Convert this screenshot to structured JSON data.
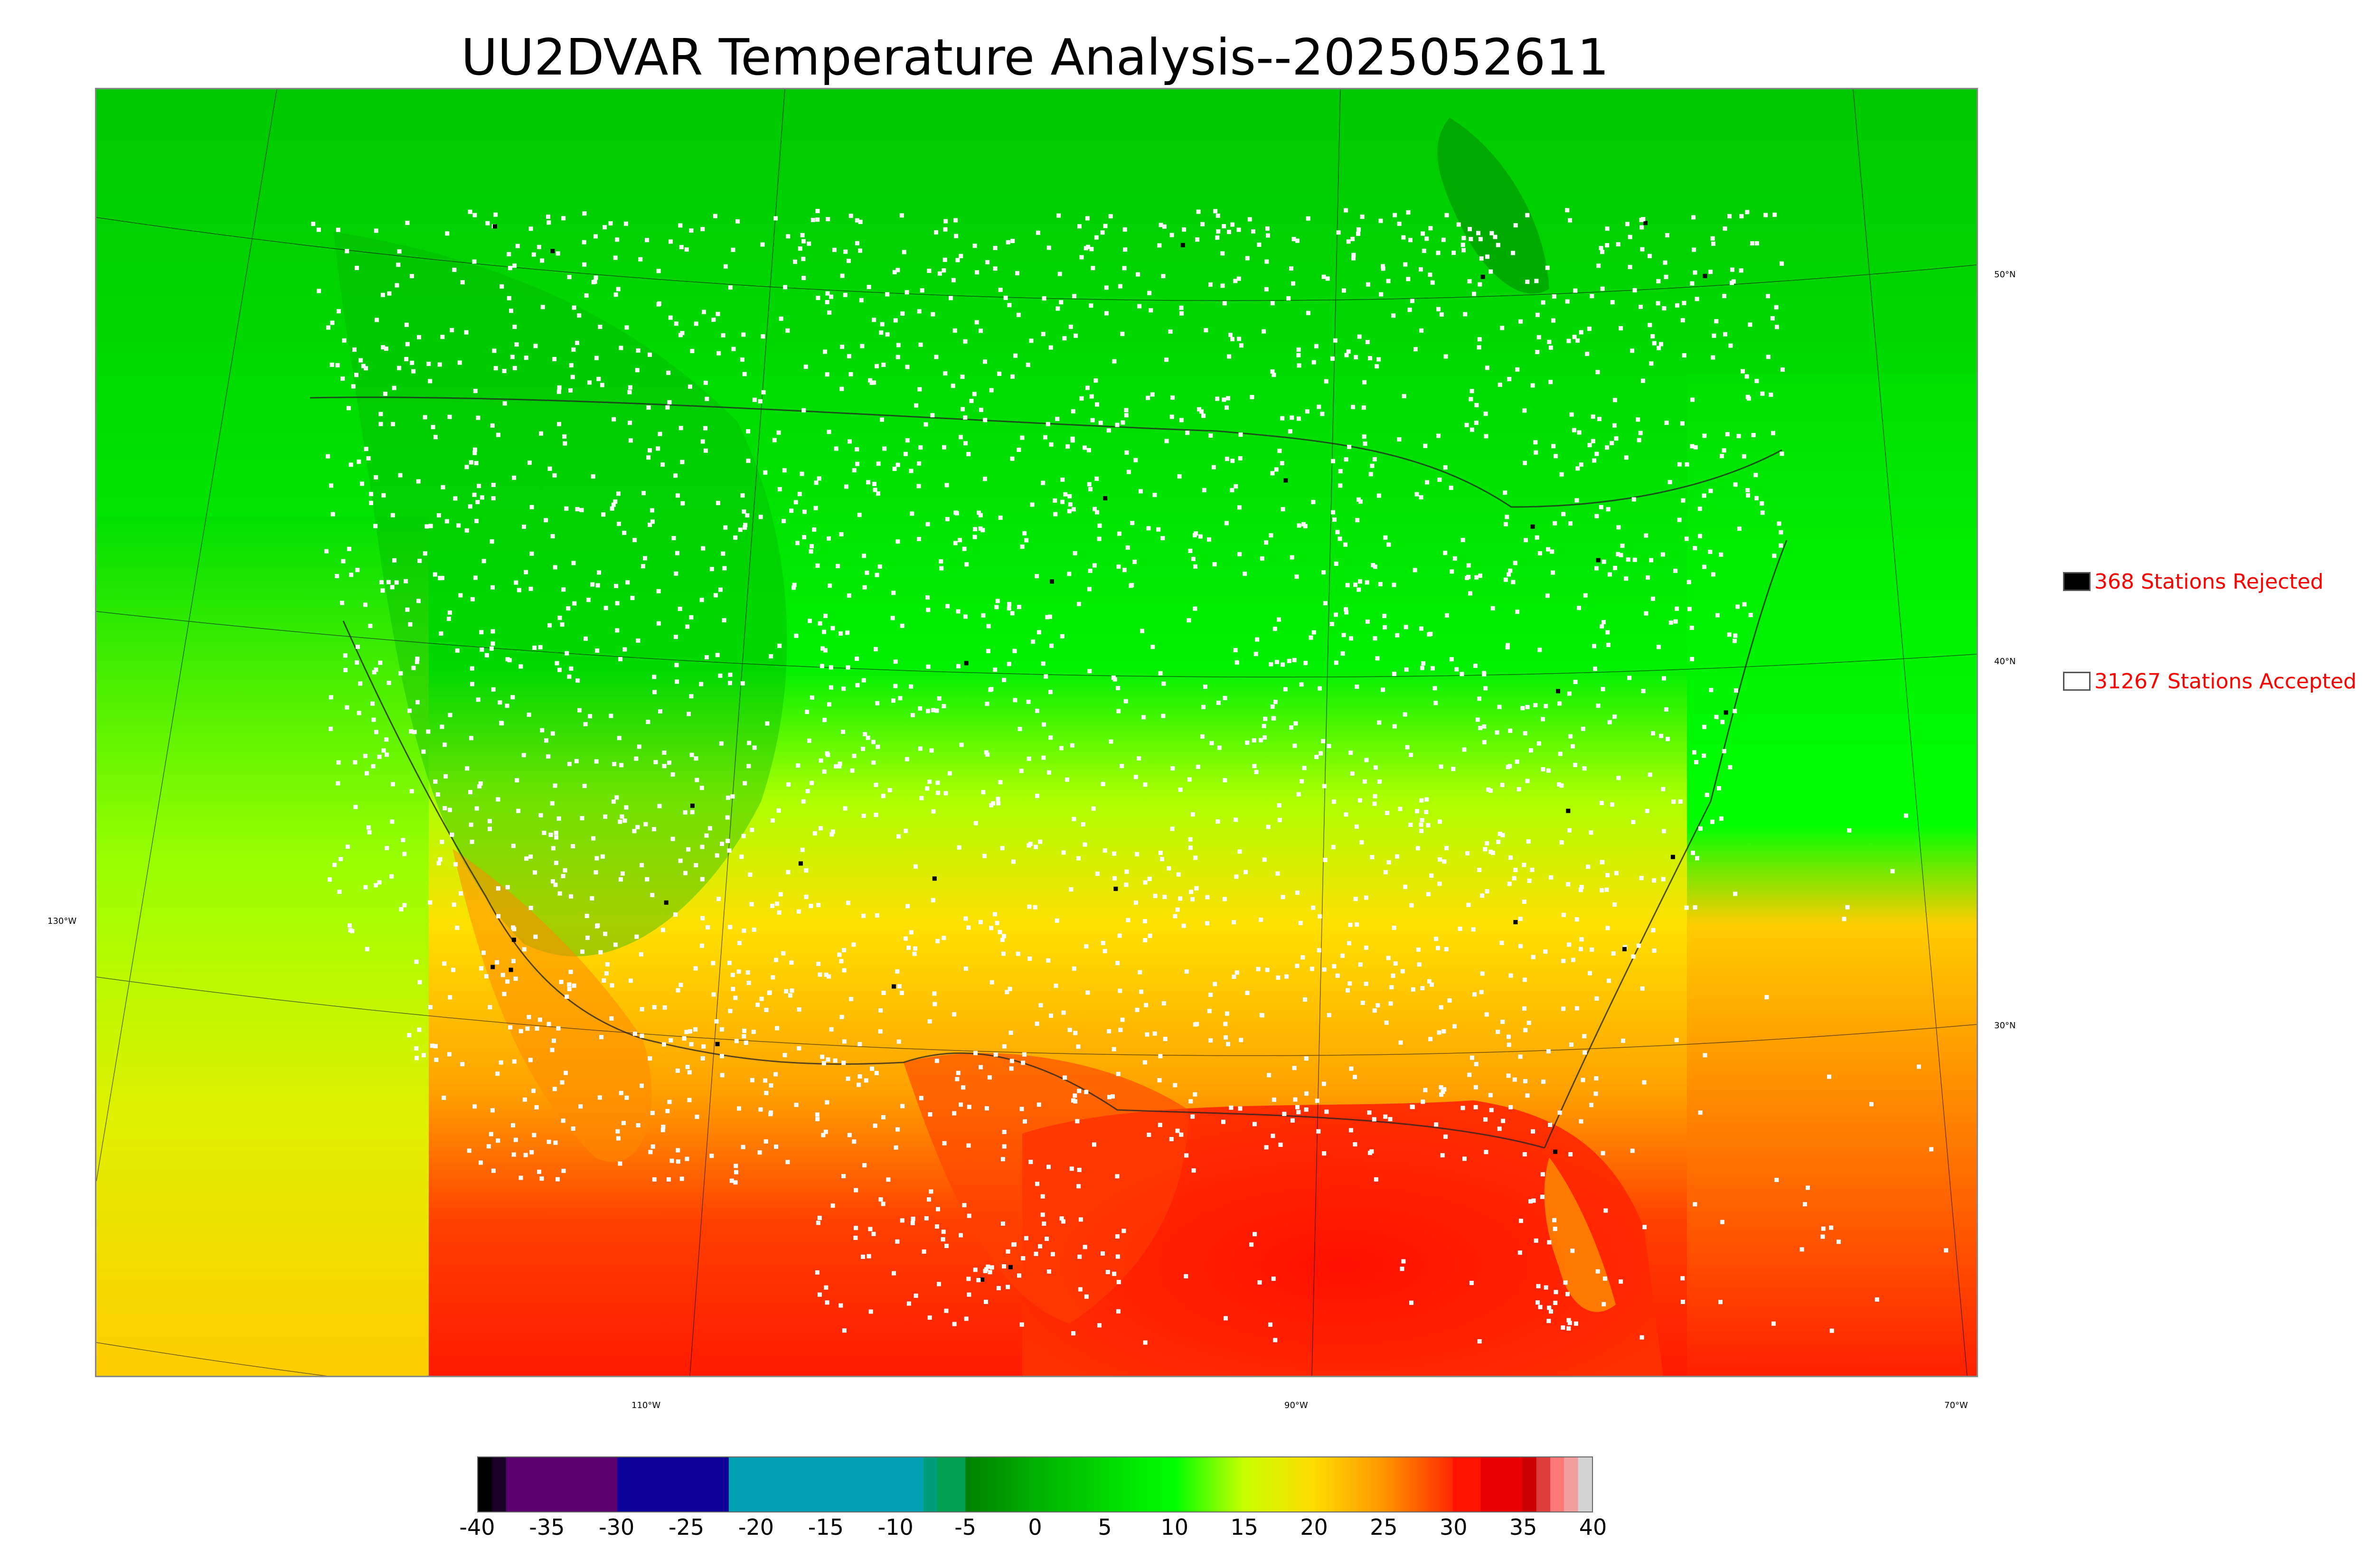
{
  "title": "UU2DVAR Temperature Analysis--2025052611",
  "map": {
    "lat_labels": [
      "50°N",
      "40°N",
      "30°N"
    ],
    "lon_labels": [
      "130°W",
      "110°W",
      "90°W",
      "70°W"
    ]
  },
  "legend": {
    "rejected": {
      "label": "368 Stations Rejected",
      "swatch_color": "#000000"
    },
    "accepted": {
      "label": "31267 Stations Accepted",
      "swatch_color": "#ffffff"
    }
  },
  "colorbar": {
    "ticks": [
      "-40",
      "-35",
      "-30",
      "-25",
      "-20",
      "-15",
      "-10",
      "-5",
      "0",
      "5",
      "10",
      "15",
      "20",
      "25",
      "30",
      "35",
      "40"
    ],
    "min": -40,
    "max": 40,
    "segments": [
      {
        "from": -40,
        "to": -39,
        "color": "#000000"
      },
      {
        "from": -39,
        "to": -38,
        "color": "#1a0026"
      },
      {
        "from": -38,
        "to": -30,
        "color": "#5a006e"
      },
      {
        "from": -30,
        "to": -22,
        "color": "#0c0096"
      },
      {
        "from": -22,
        "to": -8,
        "color": "#00a0b0"
      },
      {
        "from": -8,
        "to": -7,
        "color": "#009e78"
      },
      {
        "from": -7,
        "to": -5,
        "color": "#00a050"
      },
      {
        "from": -5,
        "to": 0,
        "gradient": [
          "#008000",
          "#00b000"
        ]
      },
      {
        "from": 0,
        "to": 10,
        "gradient": [
          "#00b000",
          "#00ff00"
        ]
      },
      {
        "from": 10,
        "to": 15,
        "gradient": [
          "#00ff00",
          "#c8ff00"
        ]
      },
      {
        "from": 15,
        "to": 20,
        "gradient": [
          "#c8ff00",
          "#ffdc00"
        ]
      },
      {
        "from": 20,
        "to": 25,
        "gradient": [
          "#ffdc00",
          "#ff9600"
        ]
      },
      {
        "from": 25,
        "to": 30,
        "gradient": [
          "#ff9600",
          "#ff2800"
        ]
      },
      {
        "from": 30,
        "to": 32,
        "color": "#ff1400"
      },
      {
        "from": 32,
        "to": 35,
        "color": "#e60000"
      },
      {
        "from": 35,
        "to": 36,
        "color": "#c80000"
      },
      {
        "from": 36,
        "to": 37,
        "color": "#dc3c3c"
      },
      {
        "from": 37,
        "to": 38,
        "color": "#ff7878"
      },
      {
        "from": 38,
        "to": 39,
        "color": "#f0a0a0"
      },
      {
        "from": 39,
        "to": 40,
        "color": "#d2d2d2"
      }
    ]
  },
  "colors": {
    "north": "#00cc00",
    "mid": "#00ff00",
    "yellow_green": "#ccff00",
    "yellow": "#ffdd00",
    "orange": "#ff9900",
    "red": "#ff2200",
    "station_accepted": "#ffffff",
    "station_rejected": "#000000"
  }
}
